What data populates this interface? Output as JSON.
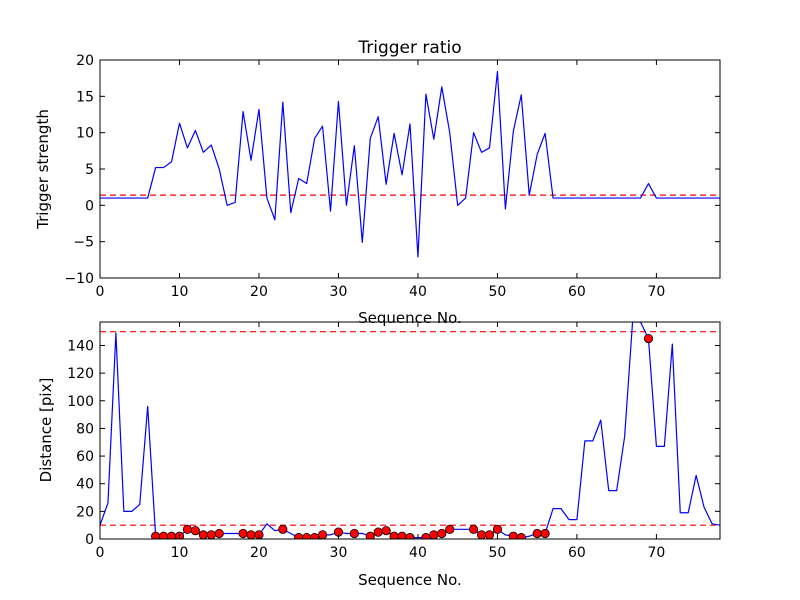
{
  "chart_data": [
    {
      "type": "line",
      "title": "Trigger ratio",
      "xlabel": "Sequence No.",
      "ylabel": "Trigger strength",
      "xlim": [
        0,
        78
      ],
      "ylim": [
        -10,
        20
      ],
      "xticks": [
        0,
        10,
        20,
        30,
        40,
        50,
        60,
        70
      ],
      "yticks": [
        -10,
        -5,
        0,
        5,
        10,
        15,
        20
      ],
      "ytick_labels": [
        "−10",
        "−5",
        "0",
        "5",
        "10",
        "15",
        "20"
      ],
      "grid": false,
      "series": [
        {
          "color": "#0000ff",
          "x": [
            0,
            1,
            2,
            3,
            4,
            5,
            6,
            7,
            8,
            9,
            10,
            11,
            12,
            13,
            14,
            15,
            16,
            17,
            18,
            19,
            20,
            21,
            22,
            23,
            24,
            25,
            26,
            27,
            28,
            29,
            30,
            31,
            32,
            33,
            34,
            35,
            36,
            37,
            38,
            39,
            40,
            41,
            42,
            43,
            44,
            45,
            46,
            47,
            48,
            49,
            50,
            51,
            52,
            53,
            54,
            55,
            56,
            57,
            58,
            59,
            60,
            61,
            62,
            63,
            64,
            65,
            66,
            67,
            68,
            69,
            70,
            71,
            72,
            73,
            74,
            75,
            76,
            77,
            78
          ],
          "y": [
            1,
            1,
            1,
            1,
            1,
            1,
            1,
            5.2,
            5.2,
            6,
            11.3,
            7.9,
            10.3,
            7.3,
            8.3,
            5,
            0,
            0.4,
            12.9,
            6.2,
            13.2,
            1,
            -2,
            14.2,
            -1,
            3.7,
            3,
            9.2,
            10.9,
            -0.8,
            14.3,
            0,
            8.2,
            -5.1,
            9.2,
            12.2,
            2.9,
            9.9,
            4.2,
            11.2,
            -7.1,
            15.3,
            9.1,
            16.3,
            10,
            0,
            1,
            10,
            7.3,
            7.9,
            18.4,
            -0.5,
            10.2,
            15.2,
            1.4,
            7,
            9.9,
            1,
            1,
            1,
            1,
            1,
            1,
            1,
            1,
            1,
            1,
            1,
            1,
            3,
            1,
            1,
            1,
            1,
            1,
            1,
            1,
            1,
            1
          ]
        }
      ],
      "reference_lines": [
        {
          "y": 1.4,
          "color": "#ff0000",
          "style": "dashed"
        }
      ]
    },
    {
      "type": "line",
      "title": "",
      "xlabel": "Sequence No.",
      "ylabel": "Distance [pix]",
      "xlim": [
        0,
        78
      ],
      "ylim": [
        0,
        157
      ],
      "xticks": [
        0,
        10,
        20,
        30,
        40,
        50,
        60,
        70
      ],
      "yticks": [
        0,
        20,
        40,
        60,
        80,
        100,
        120,
        140
      ],
      "grid": false,
      "series": [
        {
          "color": "#0000ff",
          "x": [
            0,
            1,
            2,
            3,
            4,
            5,
            6,
            7,
            8,
            9,
            10,
            11,
            12,
            13,
            14,
            15,
            16,
            17,
            18,
            19,
            20,
            21,
            22,
            23,
            24,
            25,
            26,
            27,
            28,
            29,
            30,
            31,
            32,
            33,
            34,
            35,
            36,
            37,
            38,
            39,
            40,
            41,
            42,
            43,
            44,
            45,
            46,
            47,
            48,
            49,
            50,
            51,
            52,
            53,
            54,
            55,
            56,
            57,
            58,
            59,
            60,
            61,
            62,
            63,
            64,
            65,
            66,
            67,
            68,
            69,
            70,
            71,
            72,
            73,
            74,
            75,
            76,
            77,
            78
          ],
          "y": [
            10,
            26,
            149,
            20,
            20,
            25,
            96,
            2,
            2,
            2,
            2,
            7,
            6,
            3,
            3,
            4,
            4,
            4,
            4,
            3,
            3,
            11,
            6,
            7,
            4,
            1,
            1,
            1,
            3,
            3,
            5,
            4,
            4,
            4,
            2,
            5,
            6,
            2,
            2,
            1,
            1,
            1,
            3,
            4,
            7,
            7,
            7,
            7,
            3,
            3,
            7,
            3,
            2,
            1,
            2,
            4,
            4,
            22,
            22,
            14,
            14,
            71,
            71,
            86,
            35,
            35,
            74,
            157,
            157,
            145,
            67,
            67,
            141,
            19,
            19,
            46,
            23,
            11,
            10
          ]
        },
        {
          "type": "scatter",
          "color": "#ff0000",
          "x": [
            7,
            8,
            9,
            10,
            11,
            12,
            13,
            14,
            15,
            18,
            19,
            20,
            23,
            25,
            26,
            27,
            28,
            30,
            32,
            34,
            35,
            36,
            37,
            38,
            39,
            41,
            42,
            43,
            44,
            47,
            48,
            49,
            50,
            52,
            53,
            55,
            56,
            69
          ],
          "y": [
            2,
            2,
            2,
            2,
            7,
            6,
            3,
            3,
            4,
            4,
            3,
            3,
            7,
            1,
            1,
            1,
            3,
            5,
            4,
            2,
            5,
            6,
            2,
            2,
            1,
            1,
            3,
            4,
            7,
            7,
            3,
            3,
            7,
            2,
            1,
            4,
            4,
            145
          ]
        }
      ],
      "reference_lines": [
        {
          "y": 10,
          "color": "#ff0000",
          "style": "dashed"
        },
        {
          "y": 150,
          "color": "#ff0000",
          "style": "dashed"
        }
      ]
    }
  ]
}
